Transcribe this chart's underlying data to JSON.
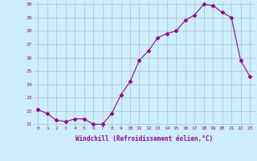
{
  "x": [
    0,
    1,
    2,
    3,
    4,
    5,
    6,
    7,
    8,
    9,
    10,
    11,
    12,
    13,
    14,
    15,
    16,
    17,
    18,
    19,
    20,
    21,
    22,
    23
  ],
  "y": [
    22.1,
    21.8,
    21.3,
    21.2,
    21.4,
    21.4,
    21.0,
    21.0,
    21.8,
    23.2,
    24.2,
    25.8,
    26.5,
    27.5,
    27.8,
    28.0,
    28.8,
    29.2,
    30.0,
    29.9,
    29.4,
    29.0,
    25.8,
    24.6
  ],
  "line_color": "#990099",
  "marker": "D",
  "marker_size": 2,
  "bg_color": "#cceeff",
  "grid_color": "#aacccc",
  "xlabel": "Windchill (Refroidissement éolien,°C)",
  "xlabel_color": "#990099",
  "tick_color": "#990099",
  "ylim": [
    21,
    30
  ],
  "xlim": [
    -0.5,
    23.5
  ],
  "yticks": [
    21,
    22,
    23,
    24,
    25,
    26,
    27,
    28,
    29,
    30
  ],
  "xticks": [
    0,
    1,
    2,
    3,
    4,
    5,
    6,
    7,
    8,
    9,
    10,
    11,
    12,
    13,
    14,
    15,
    16,
    17,
    18,
    19,
    20,
    21,
    22,
    23
  ]
}
